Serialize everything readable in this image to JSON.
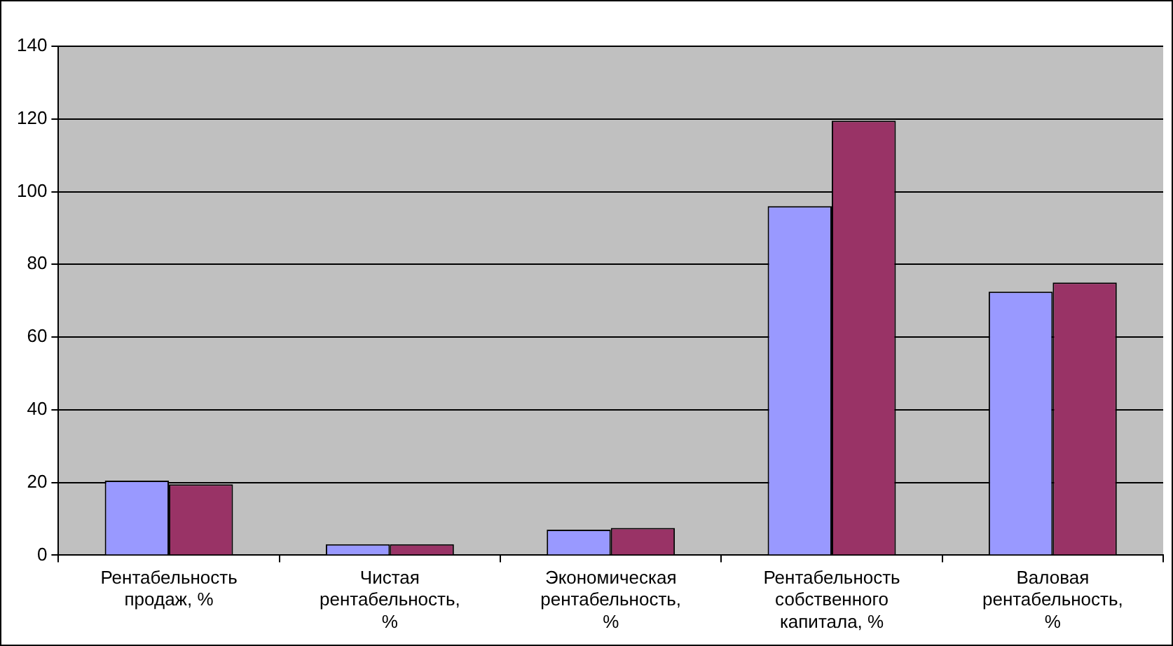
{
  "chart_data": {
    "type": "bar",
    "categories": [
      "Рентабельность\nпродаж, %",
      "Чистая\nрентабельность,\n%",
      "Экономическая\nрентабельность,\n%",
      "Рентабельность\nсобственного\nкапитала, %",
      "Валовая\nрентабельность,\n%"
    ],
    "series": [
      {
        "color": "#9999ff",
        "values": [
          20.5,
          3,
          7,
          96,
          72.5
        ]
      },
      {
        "color": "#993366",
        "values": [
          19.5,
          3,
          7.5,
          119.5,
          75
        ]
      }
    ],
    "ylim": [
      0,
      140
    ],
    "yticks": [
      0,
      20,
      40,
      60,
      80,
      100,
      120,
      140
    ],
    "grid": "y",
    "legend": false
  }
}
